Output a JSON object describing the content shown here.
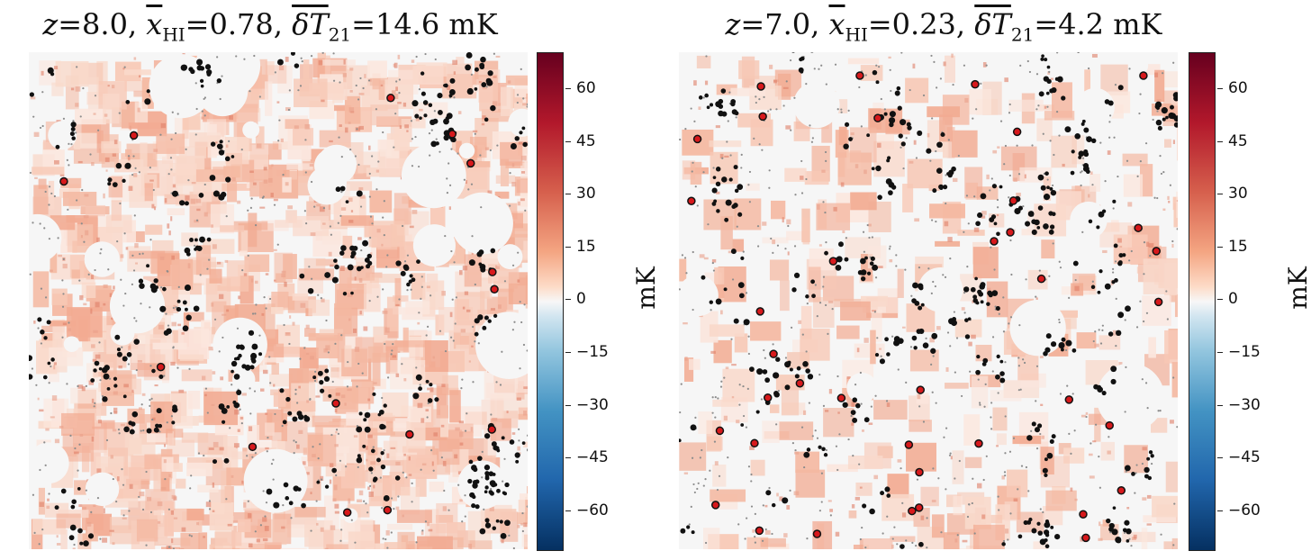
{
  "panels": [
    {
      "title": {
        "z_label": "z",
        "z_value": "8.0",
        "x_label": "x",
        "x_sub": "HI",
        "x_value": "0.78",
        "t_label": "δT",
        "t_sub": "21",
        "t_value": "14.6 mK"
      },
      "colorbar": {
        "unit": "mK",
        "ticks": [
          "60",
          "45",
          "30",
          "15",
          "0",
          "−15",
          "−30",
          "−45",
          "−60"
        ],
        "range": [
          -70,
          70
        ]
      },
      "map": {
        "background": "reddish 21-cm brightness temperature field",
        "neutral_color": "#f7c6b4",
        "ionized_color": "#f6f6f6"
      }
    },
    {
      "title": {
        "z_label": "z",
        "z_value": "7.0",
        "x_label": "x",
        "x_sub": "HI",
        "x_value": "0.23",
        "t_label": "δT",
        "t_sub": "21",
        "t_value": "4.2 mK"
      },
      "colorbar": {
        "unit": "mK",
        "ticks": [
          "60",
          "45",
          "30",
          "15",
          "0",
          "−15",
          "−30",
          "−45",
          "−60"
        ],
        "range": [
          -70,
          70
        ]
      },
      "map": {
        "background": "mostly ionized field",
        "neutral_color": "#f9d6c9",
        "ionized_color": "#f6f6f6"
      }
    }
  ],
  "colors": {
    "red_halo": "#d7191c",
    "black_halo": "#111111",
    "grey_halo": "#8c8c8c"
  }
}
